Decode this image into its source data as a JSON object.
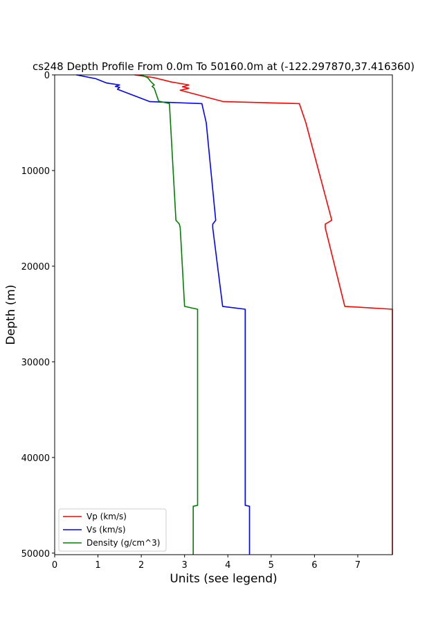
{
  "chart_data": {
    "type": "line",
    "title": "cs248 Depth Profile From 0.0m To 50160.0m at (-122.297870,37.416360)",
    "xlabel": "Units (see legend)",
    "ylabel": "Depth (m)",
    "xlim": [
      0,
      7.8
    ],
    "ylim": [
      50160,
      0
    ],
    "y_inverted": true,
    "x_ticks": [
      0,
      1,
      2,
      3,
      4,
      5,
      6,
      7
    ],
    "y_ticks": [
      0,
      10000,
      20000,
      30000,
      40000,
      50000
    ],
    "grid": false,
    "legend_position": "lower-left",
    "series": [
      {
        "name": "Vp (km/s)",
        "color": "#ff0000",
        "points": [
          [
            1.85,
            0
          ],
          [
            2.3,
            300
          ],
          [
            2.7,
            750
          ],
          [
            3.1,
            1050
          ],
          [
            2.95,
            1250
          ],
          [
            3.1,
            1400
          ],
          [
            2.9,
            1600
          ],
          [
            3.9,
            2800
          ],
          [
            5.65,
            3000
          ],
          [
            5.8,
            5000
          ],
          [
            6.4,
            15200
          ],
          [
            6.25,
            15600
          ],
          [
            6.25,
            16000
          ],
          [
            6.7,
            24200
          ],
          [
            7.8,
            24500
          ],
          [
            7.8,
            50160
          ]
        ]
      },
      {
        "name": "Vs (km/s)",
        "color": "#0000ff",
        "points": [
          [
            0.5,
            0
          ],
          [
            0.95,
            400
          ],
          [
            1.2,
            850
          ],
          [
            1.5,
            1050
          ],
          [
            1.4,
            1200
          ],
          [
            1.5,
            1300
          ],
          [
            1.45,
            1500
          ],
          [
            2.2,
            2800
          ],
          [
            3.4,
            3000
          ],
          [
            3.5,
            5000
          ],
          [
            3.72,
            15200
          ],
          [
            3.65,
            15600
          ],
          [
            3.65,
            16000
          ],
          [
            3.88,
            24200
          ],
          [
            4.4,
            24500
          ],
          [
            4.4,
            45000
          ],
          [
            4.5,
            45100
          ],
          [
            4.5,
            50160
          ]
        ]
      },
      {
        "name": "Density (g/cm^3)",
        "color": "#008000",
        "points": [
          [
            2.0,
            0
          ],
          [
            2.15,
            300
          ],
          [
            2.22,
            700
          ],
          [
            2.3,
            1050
          ],
          [
            2.25,
            1200
          ],
          [
            2.3,
            1400
          ],
          [
            2.4,
            2750
          ],
          [
            2.65,
            3000
          ],
          [
            2.8,
            15200
          ],
          [
            2.88,
            15600
          ],
          [
            2.9,
            16000
          ],
          [
            3.0,
            24200
          ],
          [
            3.3,
            24500
          ],
          [
            3.3,
            45000
          ],
          [
            3.2,
            45100
          ],
          [
            3.2,
            50160
          ]
        ]
      }
    ]
  }
}
